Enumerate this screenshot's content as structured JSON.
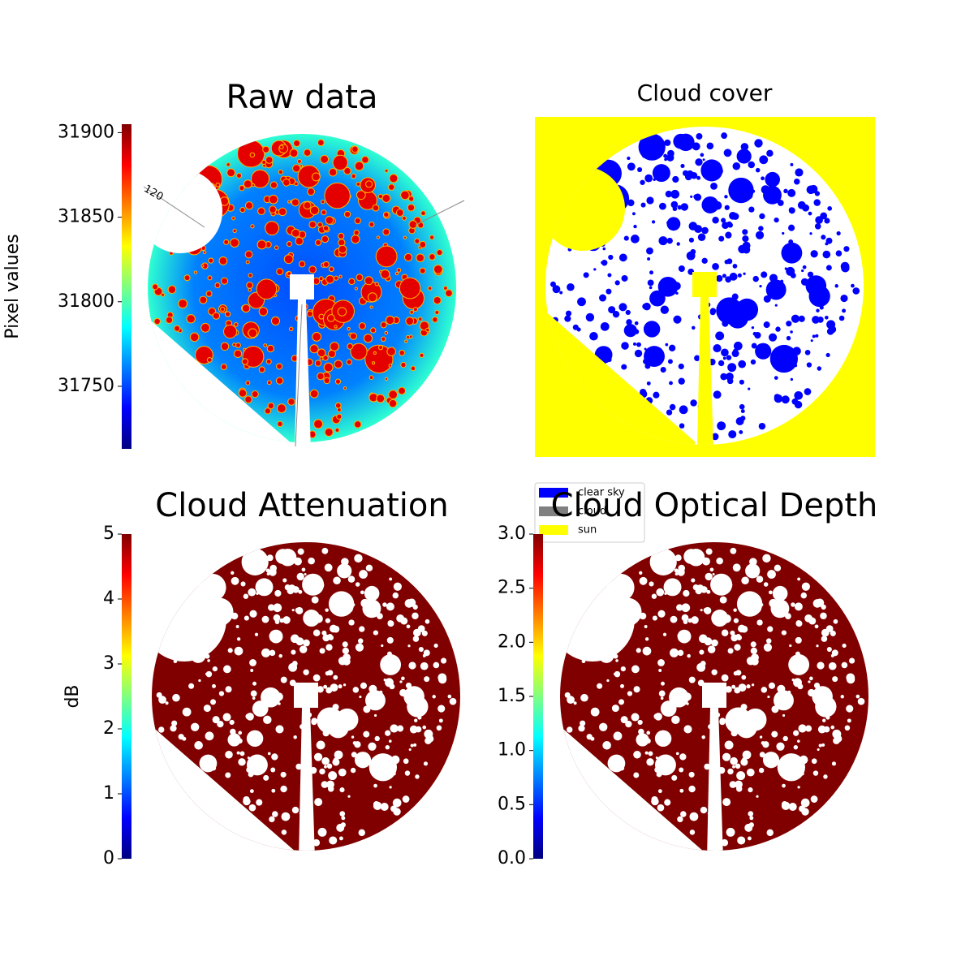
{
  "chart_data": [
    {
      "type": "image",
      "title": "Raw data",
      "colormap": "jet",
      "colorbar_label": "Pixel values",
      "clim": [
        31713,
        31905
      ],
      "cticks": [
        31750,
        31800,
        31850,
        31900
      ],
      "annotations": [
        "120"
      ]
    },
    {
      "type": "image",
      "title": "Cloud cover",
      "legend_loc": "below-left",
      "series": [
        {
          "name": "clear sky",
          "color": "#0000ff"
        },
        {
          "name": "cloud",
          "color": "#808080"
        },
        {
          "name": "sun",
          "color": "#ffff00"
        }
      ]
    },
    {
      "type": "image",
      "title": "Cloud Attenuation",
      "colormap": "jet",
      "colorbar_label": "dB",
      "clim": [
        0,
        5
      ],
      "cticks": [
        0,
        1,
        2,
        3,
        4,
        5
      ]
    },
    {
      "type": "image",
      "title": "Cloud Optical Depth",
      "colormap": "jet",
      "clim": [
        0,
        3
      ],
      "cticks": [
        {
          "value": 0,
          "label": "0.0"
        },
        0.5,
        {
          "value": 1,
          "label": "1.0"
        },
        1.5,
        {
          "value": 2,
          "label": "2.0"
        },
        2.5,
        {
          "value": 3,
          "label": "3.0"
        }
      ]
    }
  ]
}
